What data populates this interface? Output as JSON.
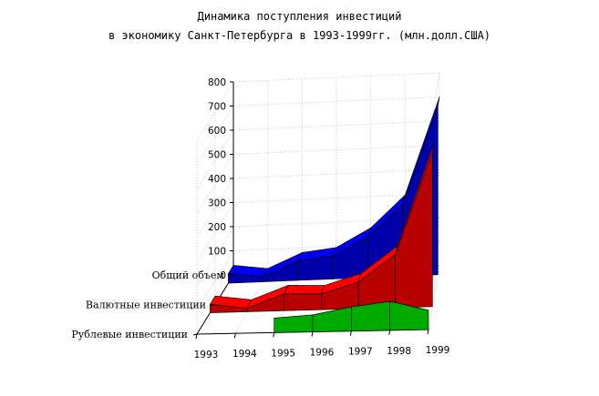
{
  "chart_data": {
    "type": "area",
    "title": "Динамика поступления инвестиций",
    "subtitle": "в экономику Санкт-Петербурга в 1993-1999гг. (млн.долл.США)",
    "categories": [
      "1993",
      "1994",
      "1995",
      "1996",
      "1997",
      "1998",
      "1999"
    ],
    "y_ticks": [
      "0",
      "100",
      "200",
      "300",
      "400",
      "500",
      "600",
      "700",
      "800"
    ],
    "ylim": [
      0,
      800
    ],
    "grid": true,
    "series": [
      {
        "name": "Общий объем",
        "color": "#0000ee",
        "values": [
          40,
          20,
          80,
          95,
          170,
          300,
          700
        ]
      },
      {
        "name": "Валютные инвестиции",
        "color": "#ff0000",
        "values": [
          35,
          15,
          70,
          65,
          110,
          220,
          640
        ]
      },
      {
        "name": "Рублевые инвестиции",
        "color": "#00ee00",
        "values": [
          null,
          null,
          60,
          70,
          100,
          120,
          80
        ]
      }
    ]
  }
}
